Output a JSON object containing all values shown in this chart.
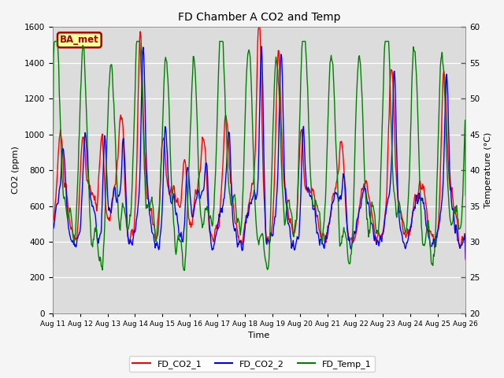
{
  "title": "FD Chamber A CO2 and Temp",
  "xlabel": "Time",
  "ylabel_left": "CO2 (ppm)",
  "ylabel_right": "Temperature (°C)",
  "ylim_left": [
    0,
    1600
  ],
  "ylim_right": [
    20,
    60
  ],
  "yticks_left": [
    0,
    200,
    400,
    600,
    800,
    1000,
    1200,
    1400,
    1600
  ],
  "yticks_right": [
    20,
    25,
    30,
    35,
    40,
    45,
    50,
    55,
    60
  ],
  "xtick_labels": [
    "Aug 11",
    "Aug 12",
    "Aug 13",
    "Aug 14",
    "Aug 15",
    "Aug 16",
    "Aug 17",
    "Aug 18",
    "Aug 19",
    "Aug 20",
    "Aug 21",
    "Aug 22",
    "Aug 23",
    "Aug 24",
    "Aug 25",
    "Aug 26"
  ],
  "legend_labels": [
    "FD_CO2_1",
    "FD_CO2_2",
    "FD_Temp_1"
  ],
  "line_colors": [
    "red",
    "blue",
    "green"
  ],
  "annotation_text": "BA_met",
  "annotation_color": "#aa0000",
  "annotation_bg": "#ffff99",
  "plot_bg_color": "#dcdcdc",
  "fig_bg_color": "#f5f5f5",
  "grid_color": "white",
  "linewidth": 1.0
}
